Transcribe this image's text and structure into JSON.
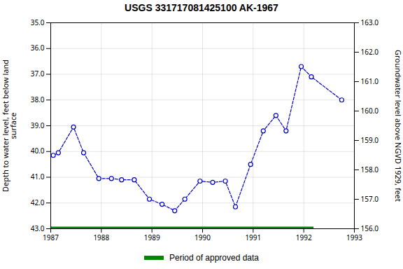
{
  "chart_data": {
    "type": "line",
    "title": "USGS 331717081425100 AK-1967",
    "x": [
      1987.05,
      1987.15,
      1987.45,
      1987.65,
      1987.95,
      1988.2,
      1988.4,
      1988.65,
      1988.95,
      1989.2,
      1989.45,
      1989.65,
      1989.95,
      1990.2,
      1990.45,
      1990.65,
      1990.95,
      1991.2,
      1991.45,
      1991.65,
      1991.95,
      1992.15,
      1992.75
    ],
    "series": [
      {
        "values": [
          40.15,
          40.05,
          39.05,
          40.05,
          41.05,
          41.05,
          41.1,
          41.1,
          41.85,
          42.05,
          42.3,
          41.85,
          41.15,
          41.2,
          41.15,
          42.15,
          40.5,
          39.2,
          38.6,
          39.2,
          36.7,
          37.1,
          38.0
        ],
        "color": "#0000CC",
        "marker": "open_circle",
        "line_style": "dashed"
      }
    ],
    "period": {
      "name": "Period of approved data",
      "y": 43.0,
      "x_start": 1987.0,
      "x_end": 1992.2,
      "color": "#008800"
    },
    "legend": "bottom",
    "ylabel": "Depth to water level, feet below land\nsurface",
    "y2label": "Groundwater level above NGVD 1929, feet",
    "xlim": [
      1987.0,
      1993.0
    ],
    "xticks": [
      1987,
      1988,
      1989,
      1990,
      1991,
      1992,
      1993
    ],
    "ylim": [
      43.0,
      35.0
    ],
    "yticks": [
      {
        "value": 35.0,
        "label": "35.0"
      },
      {
        "value": 36.0,
        "label": "36.0"
      },
      {
        "value": 37.0,
        "label": "37.0"
      },
      {
        "value": 38.0,
        "label": "38.0"
      },
      {
        "value": 39.0,
        "label": "39.0"
      },
      {
        "value": 40.0,
        "label": "40.0"
      },
      {
        "value": 41.0,
        "label": "41.0"
      },
      {
        "value": 42.0,
        "label": "42.0"
      },
      {
        "value": 43.0,
        "label": "43.0"
      }
    ],
    "y2lim": [
      156.0,
      163.0
    ],
    "y2ticks": [
      {
        "value": 156.0,
        "label": "156.0"
      },
      {
        "value": 157.0,
        "label": "157.0"
      },
      {
        "value": 158.0,
        "label": "158.0"
      },
      {
        "value": 159.0,
        "label": "159.0"
      },
      {
        "value": 160.0,
        "label": "160.0"
      },
      {
        "value": 161.0,
        "label": "161.0"
      },
      {
        "value": 162.0,
        "label": "162.0"
      },
      {
        "value": 163.0,
        "label": "163.0"
      }
    ],
    "grid": true
  }
}
